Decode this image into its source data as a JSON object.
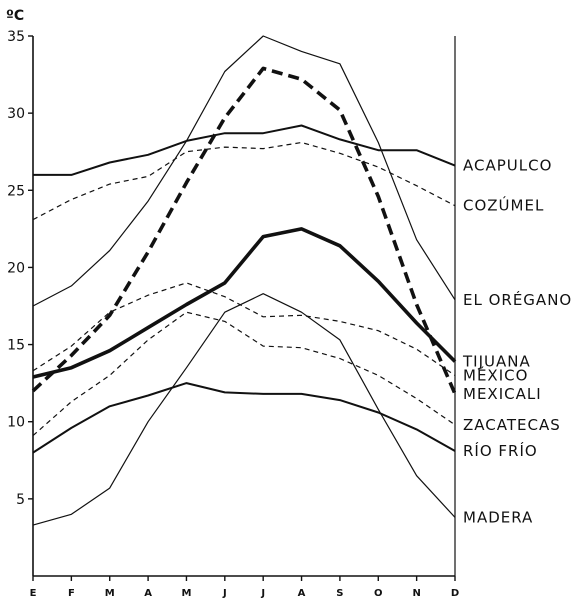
{
  "chart_data": {
    "type": "line",
    "unit_label": "ºC",
    "x": [
      "E",
      "F",
      "M",
      "A",
      "M",
      "J",
      "J",
      "A",
      "S",
      "O",
      "N",
      "D"
    ],
    "ylim": [
      0,
      35
    ],
    "yticks": [
      5,
      10,
      15,
      20,
      25,
      30,
      35
    ],
    "grid": false,
    "legend": "right-edge labels",
    "series": [
      {
        "name": "ACAPULCO",
        "style": "solid",
        "weight": "medium",
        "values": [
          26.0,
          26.0,
          26.8,
          27.3,
          28.2,
          28.7,
          28.7,
          29.2,
          28.3,
          27.6,
          27.6,
          26.6
        ]
      },
      {
        "name": "COZÚMEL",
        "style": "dashed",
        "weight": "thin",
        "values": [
          23.1,
          24.4,
          25.4,
          25.9,
          27.5,
          27.8,
          27.7,
          28.1,
          27.4,
          26.5,
          25.3,
          24.0
        ]
      },
      {
        "name": "EL ORÉGANO",
        "style": "solid",
        "weight": "thin",
        "values": [
          17.5,
          18.8,
          21.1,
          24.3,
          28.2,
          32.7,
          35.0,
          34.0,
          33.2,
          28.1,
          21.8,
          17.9
        ]
      },
      {
        "name": "TIJUANA",
        "style": "solid",
        "weight": "thick",
        "values": [
          12.9,
          13.5,
          14.6,
          16.1,
          17.6,
          19.0,
          22.0,
          22.5,
          21.4,
          19.1,
          16.4,
          13.9
        ]
      },
      {
        "name": "MÉXICO",
        "style": "dashed",
        "weight": "thin",
        "values": [
          13.3,
          14.9,
          17.1,
          18.2,
          19.0,
          18.1,
          16.8,
          16.9,
          16.5,
          15.9,
          14.7,
          13.0
        ]
      },
      {
        "name": "MEXICALI",
        "style": "dashed",
        "weight": "thick",
        "values": [
          12.0,
          14.3,
          16.9,
          21.0,
          25.5,
          29.7,
          32.9,
          32.2,
          30.2,
          24.6,
          17.6,
          11.8
        ]
      },
      {
        "name": "ZACATECAS",
        "style": "dashed",
        "weight": "thin",
        "values": [
          9.1,
          11.3,
          13.0,
          15.3,
          17.1,
          16.5,
          14.9,
          14.8,
          14.1,
          13.0,
          11.5,
          9.8
        ]
      },
      {
        "name": "RÍO FRÍO",
        "style": "solid",
        "weight": "medium",
        "values": [
          8.0,
          9.6,
          11.0,
          11.7,
          12.5,
          11.9,
          11.8,
          11.8,
          11.4,
          10.6,
          9.5,
          8.1
        ]
      },
      {
        "name": "MADERA",
        "style": "solid",
        "weight": "thin",
        "values": [
          3.3,
          4.0,
          5.7,
          10.0,
          13.5,
          17.1,
          18.3,
          17.1,
          15.3,
          10.8,
          6.5,
          3.8
        ]
      }
    ]
  }
}
